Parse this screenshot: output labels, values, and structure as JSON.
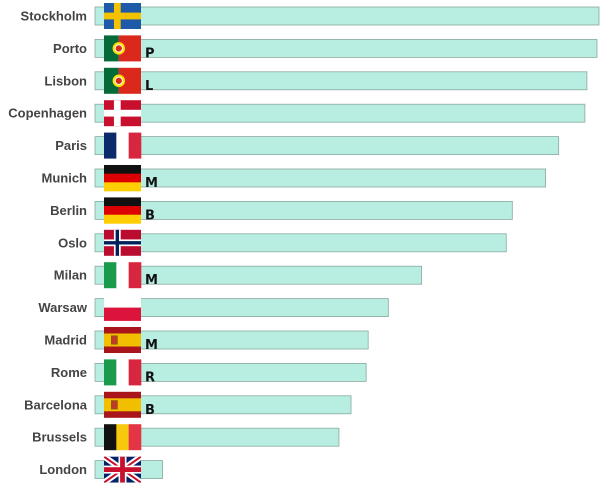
{
  "chart_data": {
    "type": "bar",
    "orientation": "horizontal",
    "title": "",
    "xlabel": "",
    "ylabel": "",
    "grid": false,
    "legend": "none",
    "categories": [
      "Stockholm",
      "Porto",
      "Lisbon",
      "Copenhagen",
      "Paris",
      "Munich",
      "Berlin",
      "Oslo",
      "Milan",
      "Warsaw",
      "Madrid",
      "Rome",
      "Barcelona",
      "Brussels",
      "London"
    ],
    "values": [
      100,
      99.6,
      97.6,
      97.2,
      92,
      89.4,
      82.8,
      81.6,
      64.8,
      58.2,
      54.2,
      53.8,
      50.8,
      48.4,
      13.4
    ],
    "bar_labels": [
      "",
      "P",
      "L",
      "",
      "",
      "M",
      "B",
      "",
      "M",
      "",
      "M",
      "R",
      "B",
      "",
      ""
    ],
    "flags": [
      "sweden-flag",
      "portugal-flag",
      "portugal-flag",
      "denmark-flag",
      "france-flag",
      "germany-flag",
      "germany-flag",
      "norway-flag",
      "italy-flag",
      "poland-flag",
      "spain-flag",
      "italy-flag",
      "spain-flag",
      "belgium-flag",
      "uk-flag"
    ],
    "xlim": [
      0,
      100
    ],
    "colors": {
      "bar_fill": "#b8ede1",
      "bar_stroke": "#8aa89f",
      "label": "#444444"
    }
  }
}
